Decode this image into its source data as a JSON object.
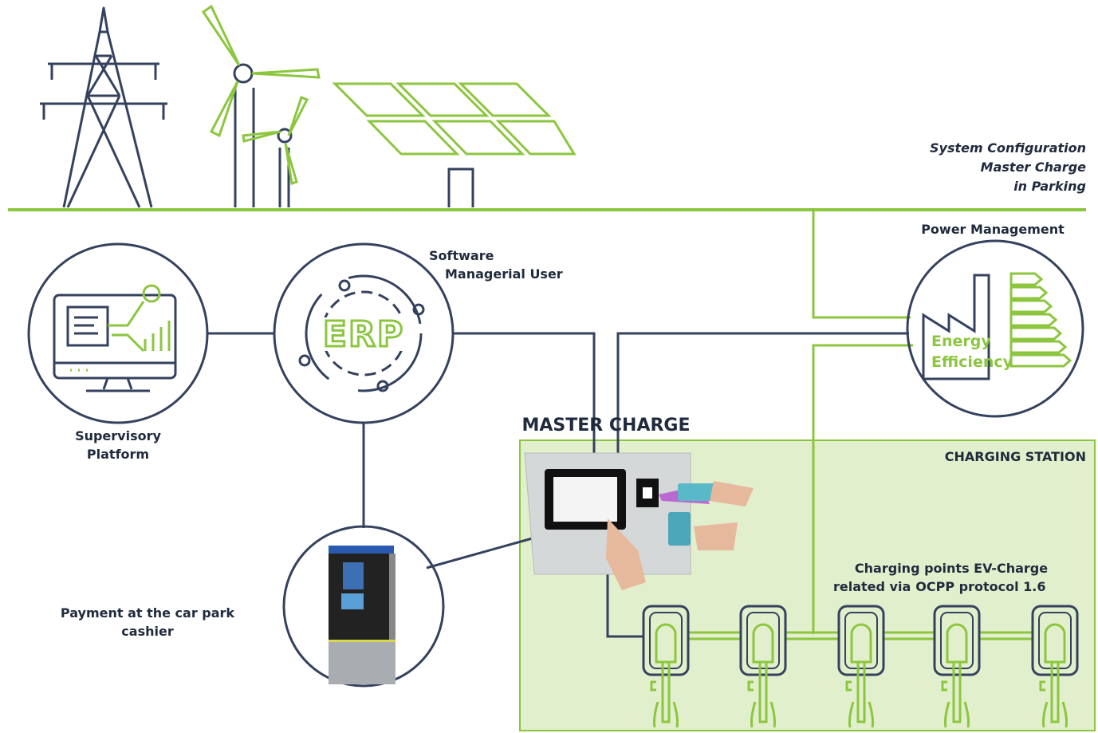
{
  "configuration_title": [
    "System Configuration",
    "Master Charge",
    "in Parking"
  ],
  "power_management": {
    "label": "Power Management",
    "icon_lines": [
      "Energy",
      "Efficiency"
    ]
  },
  "software": {
    "label_lines": [
      "Software",
      "Managerial User"
    ],
    "icon": "ERP"
  },
  "supervisory": {
    "label_lines": [
      "Supervisory",
      "Platform"
    ]
  },
  "payment": {
    "label_lines": [
      "Payment at the car park",
      "cashier"
    ]
  },
  "master_charge": {
    "title": "MASTER CHARGE"
  },
  "charging_station": {
    "title": "CHARGING STATION",
    "caption_lines": [
      "Charging points EV-Charge",
      "related via"
    ],
    "protocol": "OCPP protocol 1.6"
  }
}
